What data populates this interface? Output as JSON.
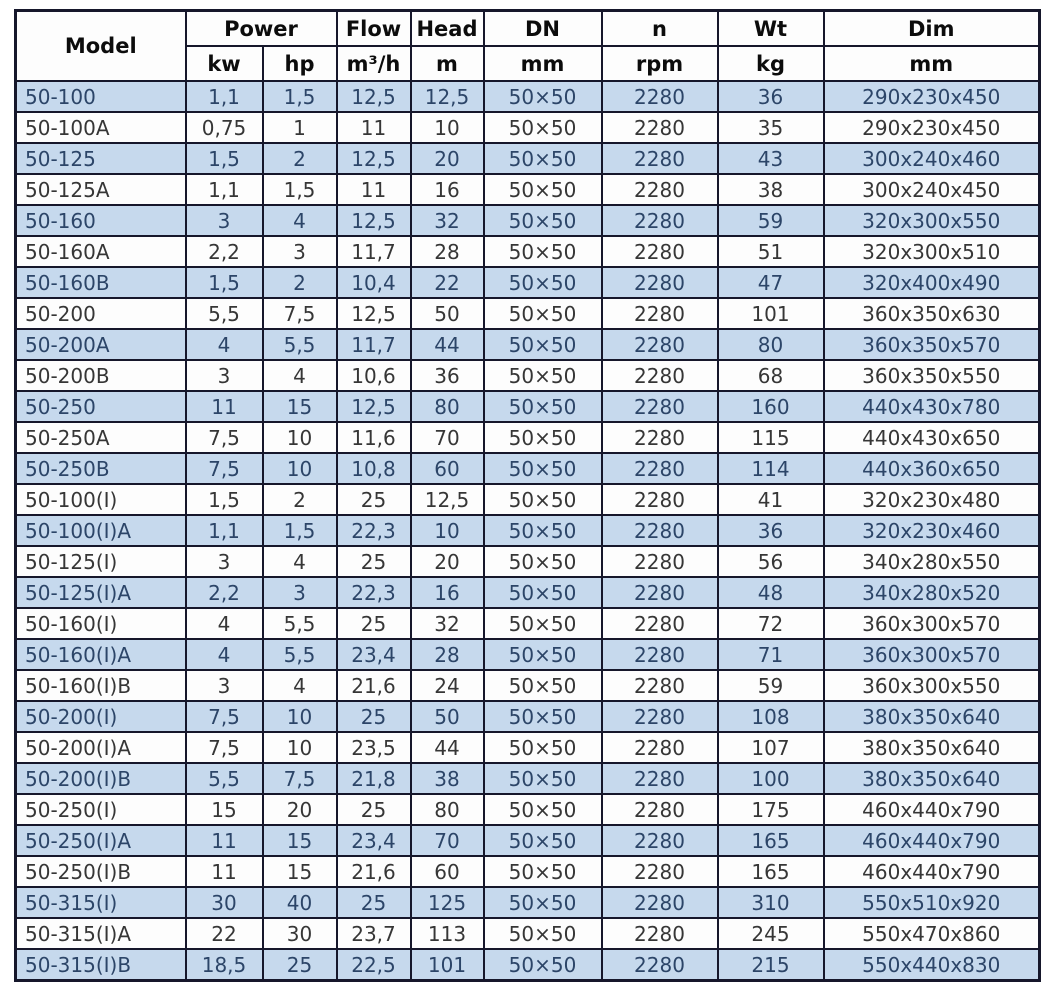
{
  "table": {
    "header": {
      "model": "Model",
      "power": "Power",
      "flow": "Flow",
      "head": "Head",
      "dn": "DN",
      "n": "n",
      "wt": "Wt",
      "dim": "Dim",
      "units": {
        "kw": "kw",
        "hp": "hp",
        "flow": "m³/h",
        "head": "m",
        "dn": "mm",
        "n": "rpm",
        "wt": "kg",
        "dim": "mm"
      }
    },
    "row_keys": [
      "model",
      "kw",
      "hp",
      "flow",
      "head",
      "dn",
      "rpm",
      "wt",
      "dim"
    ],
    "rows": [
      {
        "model": "50-100",
        "kw": "1,1",
        "hp": "1,5",
        "flow": "12,5",
        "head": "12,5",
        "dn": "50×50",
        "rpm": "2280",
        "wt": "36",
        "dim": "290x230x450"
      },
      {
        "model": "50-100A",
        "kw": "0,75",
        "hp": "1",
        "flow": "11",
        "head": "10",
        "dn": "50×50",
        "rpm": "2280",
        "wt": "35",
        "dim": "290x230x450"
      },
      {
        "model": "50-125",
        "kw": "1,5",
        "hp": "2",
        "flow": "12,5",
        "head": "20",
        "dn": "50×50",
        "rpm": "2280",
        "wt": "43",
        "dim": "300x240x460"
      },
      {
        "model": "50-125A",
        "kw": "1,1",
        "hp": "1,5",
        "flow": "11",
        "head": "16",
        "dn": "50×50",
        "rpm": "2280",
        "wt": "38",
        "dim": "300x240x450"
      },
      {
        "model": "50-160",
        "kw": "3",
        "hp": "4",
        "flow": "12,5",
        "head": "32",
        "dn": "50×50",
        "rpm": "2280",
        "wt": "59",
        "dim": "320x300x550"
      },
      {
        "model": "50-160A",
        "kw": "2,2",
        "hp": "3",
        "flow": "11,7",
        "head": "28",
        "dn": "50×50",
        "rpm": "2280",
        "wt": "51",
        "dim": "320x300x510"
      },
      {
        "model": "50-160B",
        "kw": "1,5",
        "hp": "2",
        "flow": "10,4",
        "head": "22",
        "dn": "50×50",
        "rpm": "2280",
        "wt": "47",
        "dim": "320x400x490"
      },
      {
        "model": "50-200",
        "kw": "5,5",
        "hp": "7,5",
        "flow": "12,5",
        "head": "50",
        "dn": "50×50",
        "rpm": "2280",
        "wt": "101",
        "dim": "360x350x630"
      },
      {
        "model": "50-200A",
        "kw": "4",
        "hp": "5,5",
        "flow": "11,7",
        "head": "44",
        "dn": "50×50",
        "rpm": "2280",
        "wt": "80",
        "dim": "360x350x570"
      },
      {
        "model": "50-200B",
        "kw": "3",
        "hp": "4",
        "flow": "10,6",
        "head": "36",
        "dn": "50×50",
        "rpm": "2280",
        "wt": "68",
        "dim": "360x350x550"
      },
      {
        "model": "50-250",
        "kw": "11",
        "hp": "15",
        "flow": "12,5",
        "head": "80",
        "dn": "50×50",
        "rpm": "2280",
        "wt": "160",
        "dim": "440x430x780"
      },
      {
        "model": "50-250A",
        "kw": "7,5",
        "hp": "10",
        "flow": "11,6",
        "head": "70",
        "dn": "50×50",
        "rpm": "2280",
        "wt": "115",
        "dim": "440x430x650"
      },
      {
        "model": "50-250B",
        "kw": "7,5",
        "hp": "10",
        "flow": "10,8",
        "head": "60",
        "dn": "50×50",
        "rpm": "2280",
        "wt": "114",
        "dim": "440x360x650"
      },
      {
        "model": "50-100(I)",
        "kw": "1,5",
        "hp": "2",
        "flow": "25",
        "head": "12,5",
        "dn": "50×50",
        "rpm": "2280",
        "wt": "41",
        "dim": "320x230x480"
      },
      {
        "model": "50-100(I)A",
        "kw": "1,1",
        "hp": "1,5",
        "flow": "22,3",
        "head": "10",
        "dn": "50×50",
        "rpm": "2280",
        "wt": "36",
        "dim": "320x230x460"
      },
      {
        "model": "50-125(I)",
        "kw": "3",
        "hp": "4",
        "flow": "25",
        "head": "20",
        "dn": "50×50",
        "rpm": "2280",
        "wt": "56",
        "dim": "340x280x550"
      },
      {
        "model": "50-125(I)A",
        "kw": "2,2",
        "hp": "3",
        "flow": "22,3",
        "head": "16",
        "dn": "50×50",
        "rpm": "2280",
        "wt": "48",
        "dim": "340x280x520"
      },
      {
        "model": "50-160(I)",
        "kw": "4",
        "hp": "5,5",
        "flow": "25",
        "head": "32",
        "dn": "50×50",
        "rpm": "2280",
        "wt": "72",
        "dim": "360x300x570"
      },
      {
        "model": "50-160(I)A",
        "kw": "4",
        "hp": "5,5",
        "flow": "23,4",
        "head": "28",
        "dn": "50×50",
        "rpm": "2280",
        "wt": "71",
        "dim": "360x300x570"
      },
      {
        "model": "50-160(I)B",
        "kw": "3",
        "hp": "4",
        "flow": "21,6",
        "head": "24",
        "dn": "50×50",
        "rpm": "2280",
        "wt": "59",
        "dim": "360x300x550"
      },
      {
        "model": "50-200(I)",
        "kw": "7,5",
        "hp": "10",
        "flow": "25",
        "head": "50",
        "dn": "50×50",
        "rpm": "2280",
        "wt": "108",
        "dim": "380x350x640"
      },
      {
        "model": "50-200(I)A",
        "kw": "7,5",
        "hp": "10",
        "flow": "23,5",
        "head": "44",
        "dn": "50×50",
        "rpm": "2280",
        "wt": "107",
        "dim": "380x350x640"
      },
      {
        "model": "50-200(I)B",
        "kw": "5,5",
        "hp": "7,5",
        "flow": "21,8",
        "head": "38",
        "dn": "50×50",
        "rpm": "2280",
        "wt": "100",
        "dim": "380x350x640"
      },
      {
        "model": "50-250(I)",
        "kw": "15",
        "hp": "20",
        "flow": "25",
        "head": "80",
        "dn": "50×50",
        "rpm": "2280",
        "wt": "175",
        "dim": "460x440x790"
      },
      {
        "model": "50-250(I)A",
        "kw": "11",
        "hp": "15",
        "flow": "23,4",
        "head": "70",
        "dn": "50×50",
        "rpm": "2280",
        "wt": "165",
        "dim": "460x440x790"
      },
      {
        "model": "50-250(I)B",
        "kw": "11",
        "hp": "15",
        "flow": "21,6",
        "head": "60",
        "dn": "50×50",
        "rpm": "2280",
        "wt": "165",
        "dim": "460x440x790"
      },
      {
        "model": "50-315(I)",
        "kw": "30",
        "hp": "40",
        "flow": "25",
        "head": "125",
        "dn": "50×50",
        "rpm": "2280",
        "wt": "310",
        "dim": "550x510x920"
      },
      {
        "model": "50-315(I)A",
        "kw": "22",
        "hp": "30",
        "flow": "23,7",
        "head": "113",
        "dn": "50×50",
        "rpm": "2280",
        "wt": "245",
        "dim": "550x470x860"
      },
      {
        "model": "50-315(I)B",
        "kw": "18,5",
        "hp": "25",
        "flow": "22,5",
        "head": "101",
        "dn": "50×50",
        "rpm": "2280",
        "wt": "215",
        "dim": "550x440x830"
      }
    ]
  },
  "colors": {
    "shaded_row_bg": "#c6d9ed",
    "shaded_row_text": "#2c4568",
    "plain_row_text": "#363636",
    "border": "#16172b",
    "header_bg": "#fdfdfd"
  }
}
